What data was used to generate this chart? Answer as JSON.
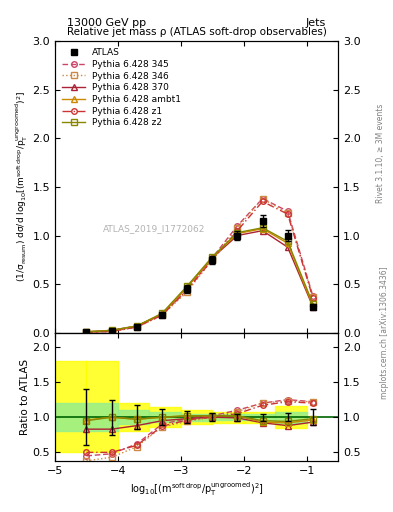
{
  "title_top": "13000 GeV pp",
  "title_right": "Jets",
  "plot_title": "Relative jet mass ρ (ATLAS soft-drop observables)",
  "xlabel": "log$_{10}$[(m$^{\\mathrm{soft\\,drop}}$/p$_{\\mathrm{T}}^{\\mathrm{ungroomed}}$)$^2$]",
  "ylabel_main": "(1/σ$_{\\mathrm{resum}}$) dσ/d log$_{10}$[(m$^{\\mathrm{soft\\,drop}}$/p$_\\mathrm{T}^{\\mathrm{ungroomed}}$)$^2$]",
  "ylabel_ratio": "Ratio to ATLAS",
  "watermark": "ATLAS_2019_I1772062",
  "rivet_text": "Rivet 3.1.10, ≥ 3M events",
  "arxiv_text": "mcplots.cern.ch [arXiv:1306.3436]",
  "x_data": [
    -4.5,
    -4.1,
    -3.7,
    -3.3,
    -2.9,
    -2.5,
    -2.1,
    -1.7,
    -1.3,
    -0.9
  ],
  "atlas_y": [
    0.01,
    0.02,
    0.06,
    0.18,
    0.45,
    0.75,
    1.0,
    1.15,
    1.0,
    0.27
  ],
  "atlas_yerr": [
    0.004,
    0.005,
    0.01,
    0.02,
    0.04,
    0.04,
    0.05,
    0.06,
    0.06,
    0.03
  ],
  "p345_y": [
    0.005,
    0.015,
    0.06,
    0.19,
    0.44,
    0.77,
    1.1,
    1.38,
    1.25,
    0.38
  ],
  "p346_y": [
    0.004,
    0.013,
    0.055,
    0.18,
    0.42,
    0.75,
    1.08,
    1.38,
    1.23,
    0.37
  ],
  "p370_y": [
    0.01,
    0.025,
    0.07,
    0.19,
    0.47,
    0.77,
    1.0,
    1.05,
    0.88,
    0.27
  ],
  "pambt1_y": [
    0.01,
    0.025,
    0.07,
    0.19,
    0.47,
    0.77,
    1.02,
    1.07,
    0.92,
    0.28
  ],
  "pz1_y": [
    0.005,
    0.015,
    0.06,
    0.18,
    0.44,
    0.75,
    1.05,
    1.35,
    1.22,
    0.36
  ],
  "pz2_y": [
    0.01,
    0.025,
    0.07,
    0.2,
    0.48,
    0.78,
    1.03,
    1.08,
    0.94,
    0.3
  ],
  "ratio_345": [
    0.45,
    0.48,
    0.62,
    0.9,
    0.98,
    1.02,
    1.1,
    1.2,
    1.25,
    1.22
  ],
  "ratio_346": [
    0.38,
    0.43,
    0.58,
    0.86,
    0.94,
    1.0,
    1.08,
    1.2,
    1.23,
    1.22
  ],
  "ratio_370": [
    0.83,
    0.83,
    0.88,
    0.95,
    0.98,
    1.0,
    0.99,
    0.92,
    0.88,
    0.93
  ],
  "ratio_ambt1": [
    0.96,
    1.0,
    0.97,
    1.0,
    1.02,
    1.02,
    1.02,
    0.93,
    0.92,
    0.96
  ],
  "ratio_z1": [
    0.5,
    0.5,
    0.6,
    0.87,
    0.96,
    1.0,
    1.05,
    1.17,
    1.22,
    1.2
  ],
  "ratio_z2": [
    0.95,
    1.0,
    0.97,
    1.0,
    1.02,
    1.02,
    1.02,
    0.95,
    0.94,
    0.98
  ],
  "green_band_x": [
    -4.75,
    -4.25,
    -3.75,
    -3.25,
    -2.75,
    -2.25,
    -1.75,
    -1.25,
    -0.75
  ],
  "green_band_lo": [
    0.8,
    0.8,
    0.9,
    0.93,
    0.95,
    0.96,
    0.96,
    0.92,
    0.9
  ],
  "green_band_hi": [
    1.2,
    1.2,
    1.1,
    1.07,
    1.05,
    1.04,
    1.04,
    1.08,
    1.1
  ],
  "yellow_band_lo": [
    0.5,
    0.5,
    0.8,
    0.86,
    0.9,
    0.92,
    0.92,
    0.84,
    0.8
  ],
  "yellow_band_hi": [
    1.8,
    1.8,
    1.2,
    1.14,
    1.1,
    1.08,
    1.08,
    1.16,
    1.2
  ],
  "color_345": "#cc4466",
  "color_346": "#cc8844",
  "color_370": "#aa2233",
  "color_ambt1": "#cc8800",
  "color_z1": "#cc3333",
  "color_z2": "#888800",
  "color_atlas": "#000000",
  "xlim": [
    -5.0,
    -0.5
  ],
  "ylim_main": [
    0,
    3.0
  ],
  "ylim_ratio": [
    0.4,
    2.2
  ],
  "xticks": [
    -5,
    -4,
    -3,
    -2,
    -1
  ],
  "yticks_main": [
    0,
    0.5,
    1.0,
    1.5,
    2.0,
    2.5,
    3.0
  ],
  "yticks_ratio": [
    0.5,
    1.0,
    1.5,
    2.0
  ]
}
